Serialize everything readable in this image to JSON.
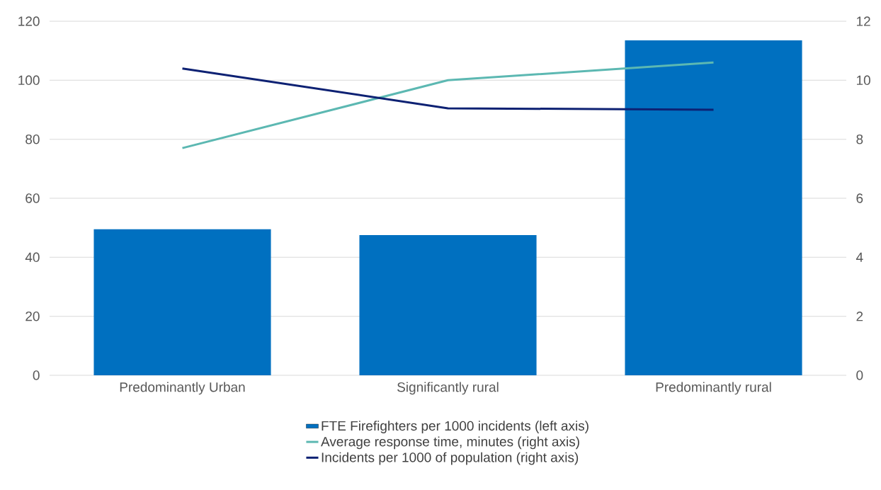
{
  "chart_data": {
    "type": "bar",
    "categories": [
      "Predominantly Urban",
      "Significantly rural",
      "Predominantly rural"
    ],
    "series": [
      {
        "name": "FTE Firefighters per 1000 incidents (left axis)",
        "color": "#0070c0",
        "values": [
          49.5,
          47.5,
          113.5
        ]
      },
      {
        "name": "Average response time, minutes (right axis)",
        "type": "line",
        "axis": "y2",
        "color": "#5cb8b2",
        "values": [
          7.7,
          10.0,
          10.6
        ]
      },
      {
        "name": "Incidents per 1000 of population (right axis)",
        "type": "line",
        "axis": "y2",
        "color": "#0d2173",
        "values": [
          10.4,
          9.05,
          9.0
        ]
      }
    ],
    "ylim": [
      0,
      120
    ],
    "yticks": [
      0,
      20,
      40,
      60,
      80,
      100,
      120
    ],
    "y2lim": [
      0,
      12
    ],
    "y2ticks": [
      0,
      2,
      4,
      6,
      8,
      10,
      12
    ],
    "grid": "y",
    "legend": "bottom",
    "marker": "none"
  }
}
